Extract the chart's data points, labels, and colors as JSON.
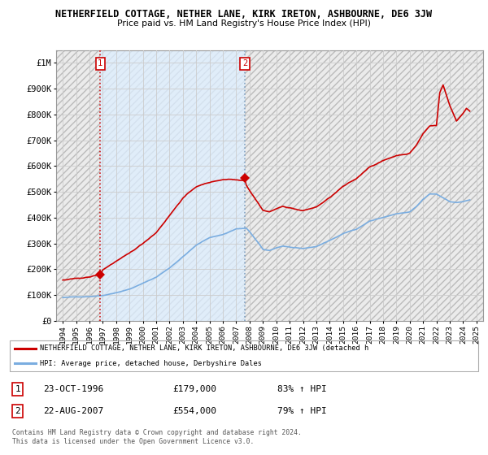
{
  "title": "NETHERFIELD COTTAGE, NETHER LANE, KIRK IRETON, ASHBOURNE, DE6 3JW",
  "subtitle": "Price paid vs. HM Land Registry's House Price Index (HPI)",
  "xlim": [
    1993.5,
    2025.5
  ],
  "ylim": [
    0,
    1050000
  ],
  "yticks": [
    0,
    100000,
    200000,
    300000,
    400000,
    500000,
    600000,
    700000,
    800000,
    900000,
    1000000
  ],
  "ytick_labels": [
    "£0",
    "£100K",
    "£200K",
    "£300K",
    "£400K",
    "£500K",
    "£600K",
    "£700K",
    "£800K",
    "£900K",
    "£1M"
  ],
  "xticks": [
    1994,
    1995,
    1996,
    1997,
    1998,
    1999,
    2000,
    2001,
    2002,
    2003,
    2004,
    2005,
    2006,
    2007,
    2008,
    2009,
    2010,
    2011,
    2012,
    2013,
    2014,
    2015,
    2016,
    2017,
    2018,
    2019,
    2020,
    2021,
    2022,
    2023,
    2024,
    2025
  ],
  "sale1_x": 1996.81,
  "sale1_y": 179000,
  "sale1_label": "1",
  "sale1_date": "23-OCT-1996",
  "sale1_price": "£179,000",
  "sale1_hpi": "83% ↑ HPI",
  "sale2_x": 2007.64,
  "sale2_y": 554000,
  "sale2_label": "2",
  "sale2_date": "22-AUG-2007",
  "sale2_price": "£554,000",
  "sale2_hpi": "79% ↑ HPI",
  "red_color": "#cc0000",
  "blue_color": "#7aade0",
  "legend_line1": "NETHERFIELD COTTAGE, NETHER LANE, KIRK IRETON, ASHBOURNE, DE6 3JW (detached h",
  "legend_line2": "HPI: Average price, detached house, Derbyshire Dales",
  "footer": "Contains HM Land Registry data © Crown copyright and database right 2024.\nThis data is licensed under the Open Government Licence v3.0."
}
